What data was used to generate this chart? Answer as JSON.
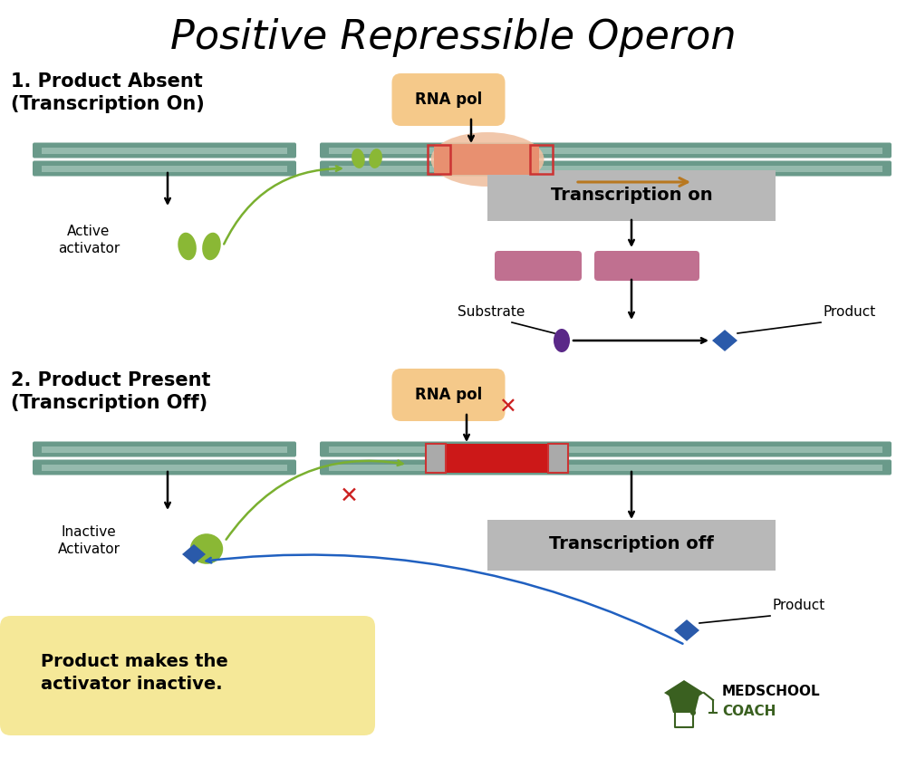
{
  "title": "Positive Repressible Operon",
  "bg_color": "#ffffff",
  "section1_label": "1. Product Absent\n(Transcription On)",
  "section2_label": "2. Product Present\n(Transcription Off)",
  "dna_color": "#6a9a8a",
  "dna_stripe_color": "#a8c8bc",
  "activator_color": "#8ab835",
  "rna_pol_bg": "#f5c98a",
  "promoter_color": "#f0c0a0",
  "rna_on_dna_color": "#e89070",
  "transcription_box_bg": "#b8b8b8",
  "mrna_color": "#c07090",
  "substrate_color": "#5a2888",
  "product_color": "#2a5aaa",
  "orange_arrow_color": "#b87820",
  "green_arrow_color": "#7ab030",
  "blue_arrow_color": "#2060c0",
  "red_x_color": "#cc2020",
  "note_bg": "#f5e898",
  "note_text": "Product makes the\nactivator inactive.",
  "medschool_green": "#3a6020",
  "red_operator_color": "#cc1818",
  "gray_box_color": "#aaaaaa"
}
